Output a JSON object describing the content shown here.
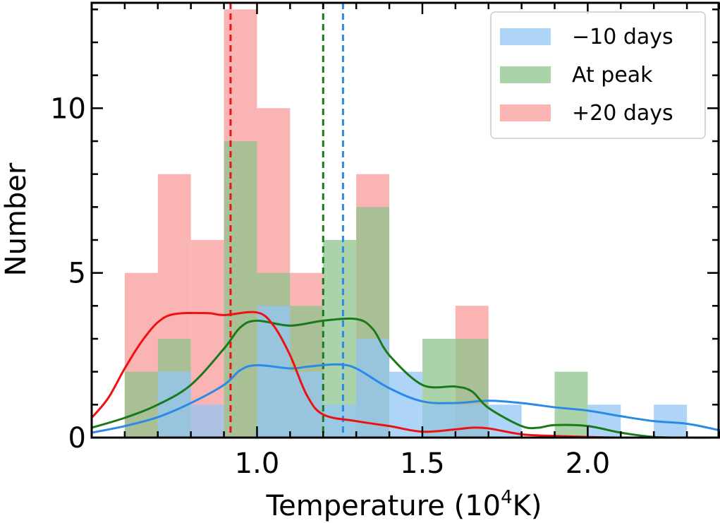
{
  "chart_data": {
    "type": "histogram",
    "xlabel": "Temperature (10",
    "xlabel_sup": "4",
    "xlabel_tail": "K)",
    "ylabel": "Number",
    "xlim": [
      0.5,
      2.4
    ],
    "ylim": [
      0,
      13.2
    ],
    "xticks": [
      1.0,
      1.5,
      2.0
    ],
    "xtick_labels": [
      "1.0",
      "1.5",
      "2.0"
    ],
    "yticks": [
      0,
      5,
      10
    ],
    "ytick_labels": [
      "0",
      "5",
      "10"
    ],
    "bin_edges": [
      0.6,
      0.7,
      0.8,
      0.9,
      1.0,
      1.1,
      1.2,
      1.3,
      1.4,
      1.5,
      1.6,
      1.7,
      1.8,
      1.9,
      2.0,
      2.1,
      2.2,
      2.3
    ],
    "legend_position": "top-right",
    "series": [
      {
        "name": "−10 days",
        "color": "#93c5f5",
        "line_color": "#2a8ae8",
        "counts": [
          0,
          2,
          1,
          0,
          4,
          2,
          1,
          3,
          2,
          1,
          1,
          1,
          0,
          0,
          1,
          0,
          1
        ],
        "median": 1.26,
        "kde": [
          [
            0.5,
            0.15
          ],
          [
            0.6,
            0.35
          ],
          [
            0.7,
            0.62
          ],
          [
            0.8,
            1.05
          ],
          [
            0.9,
            1.6
          ],
          [
            0.95,
            2.05
          ],
          [
            1.0,
            2.2
          ],
          [
            1.1,
            2.1
          ],
          [
            1.15,
            2.15
          ],
          [
            1.2,
            2.2
          ],
          [
            1.25,
            2.22
          ],
          [
            1.3,
            2.1
          ],
          [
            1.4,
            1.5
          ],
          [
            1.5,
            1.1
          ],
          [
            1.6,
            1.05
          ],
          [
            1.7,
            1.12
          ],
          [
            1.8,
            1.05
          ],
          [
            1.9,
            0.92
          ],
          [
            2.0,
            0.82
          ],
          [
            2.1,
            0.65
          ],
          [
            2.2,
            0.5
          ],
          [
            2.3,
            0.42
          ],
          [
            2.4,
            0.22
          ]
        ]
      },
      {
        "name": "At peak",
        "color": "#8dc48d",
        "line_color": "#1a7a1a",
        "counts": [
          2,
          3,
          0,
          9,
          5,
          4,
          6,
          7,
          0,
          3,
          3,
          0,
          0,
          2,
          0,
          0,
          0
        ],
        "median": 1.2,
        "kde": [
          [
            0.5,
            0.3
          ],
          [
            0.6,
            0.6
          ],
          [
            0.7,
            1.0
          ],
          [
            0.8,
            1.6
          ],
          [
            0.9,
            2.7
          ],
          [
            0.95,
            3.35
          ],
          [
            1.0,
            3.55
          ],
          [
            1.1,
            3.4
          ],
          [
            1.2,
            3.55
          ],
          [
            1.3,
            3.6
          ],
          [
            1.35,
            3.3
          ],
          [
            1.4,
            2.5
          ],
          [
            1.5,
            1.6
          ],
          [
            1.6,
            1.55
          ],
          [
            1.65,
            1.4
          ],
          [
            1.7,
            0.9
          ],
          [
            1.8,
            0.35
          ],
          [
            1.85,
            0.3
          ],
          [
            1.9,
            0.38
          ],
          [
            2.0,
            0.35
          ],
          [
            2.1,
            0.15
          ],
          [
            2.2,
            0.02
          ],
          [
            2.3,
            0.0
          ],
          [
            2.4,
            0.0
          ]
        ]
      },
      {
        "name": "+20 days",
        "color": "#f99b9b",
        "line_color": "#ee1111",
        "counts": [
          5,
          8,
          6,
          13,
          10,
          5,
          0,
          8,
          0,
          0,
          4,
          0,
          0,
          0,
          0,
          0,
          0
        ],
        "median": 0.92,
        "kde": [
          [
            0.5,
            0.6
          ],
          [
            0.55,
            1.2
          ],
          [
            0.6,
            2.1
          ],
          [
            0.65,
            2.9
          ],
          [
            0.7,
            3.5
          ],
          [
            0.75,
            3.75
          ],
          [
            0.85,
            3.78
          ],
          [
            0.9,
            3.72
          ],
          [
            1.0,
            3.8
          ],
          [
            1.05,
            3.4
          ],
          [
            1.1,
            2.5
          ],
          [
            1.15,
            1.3
          ],
          [
            1.2,
            0.7
          ],
          [
            1.3,
            0.5
          ],
          [
            1.4,
            0.35
          ],
          [
            1.5,
            0.18
          ],
          [
            1.6,
            0.25
          ],
          [
            1.65,
            0.3
          ],
          [
            1.7,
            0.28
          ],
          [
            1.8,
            0.1
          ],
          [
            1.9,
            0.05
          ],
          [
            2.0,
            0.02
          ],
          [
            2.1,
            0.0
          ],
          [
            2.4,
            0.0
          ]
        ]
      }
    ]
  }
}
